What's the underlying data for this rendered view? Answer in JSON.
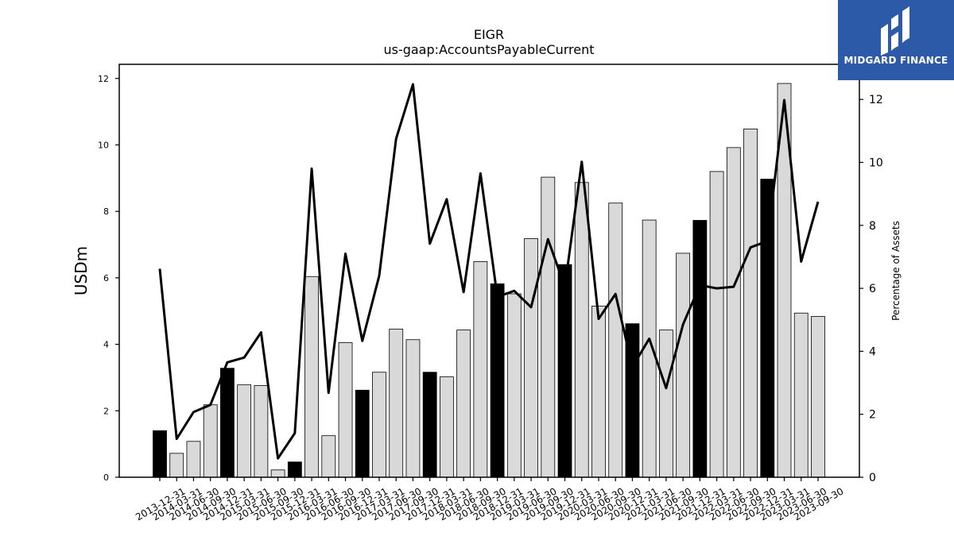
{
  "chart_data": {
    "type": "bar+line",
    "title": "EIGR",
    "subtitle": "us-gaap:AccountsPayableCurrent",
    "ylabel_left": "USDm",
    "ylabel_right": "Percentage of Assets",
    "ylim_left": [
      0,
      12.4
    ],
    "ylim_right": [
      0,
      13.1
    ],
    "yticks_left": [
      "0",
      "2",
      "4",
      "6",
      "8",
      "10",
      "12"
    ],
    "yticks_right": [
      "0",
      "2",
      "4",
      "6",
      "8",
      "10",
      "12"
    ],
    "categories": [
      "2013-12-31",
      "2014-03-31",
      "2014-06-30",
      "2014-09-30",
      "2014-12-31",
      "2015-03-31",
      "2015-06-30",
      "2015-09-30",
      "2015-12-31",
      "2016-03-31",
      "2016-06-30",
      "2016-09-30",
      "2016-12-31",
      "2017-03-31",
      "2017-06-30",
      "2017-09-30",
      "2017-12-31",
      "2018-03-31",
      "2018-06-30",
      "2018-09-30",
      "2018-12-31",
      "2019-03-31",
      "2019-06-30",
      "2019-09-30",
      "2019-12-31",
      "2020-03-31",
      "2020-06-30",
      "2020-09-30",
      "2020-12-31",
      "2021-03-31",
      "2021-06-30",
      "2021-09-30",
      "2021-12-31",
      "2022-03-31",
      "2022-06-30",
      "2022-09-30",
      "2022-12-31",
      "2023-03-31",
      "2023-06-30",
      "2023-09-30"
    ],
    "series": [
      {
        "kind": "bar",
        "values": [
          1.4,
          0.72,
          1.08,
          2.18,
          3.28,
          2.78,
          2.76,
          0.22,
          0.46,
          6.04,
          1.25,
          4.05,
          2.62,
          3.16,
          4.46,
          4.14,
          3.16,
          3.02,
          4.43,
          6.49,
          5.82,
          5.52,
          7.18,
          9.03,
          6.4,
          8.87,
          5.15,
          8.25,
          4.62,
          7.74,
          4.43,
          6.74,
          7.73,
          9.2,
          9.92,
          10.48,
          8.97,
          11.85,
          4.94,
          4.84
        ],
        "year_end": [
          true,
          false,
          false,
          false,
          true,
          false,
          false,
          false,
          true,
          false,
          false,
          false,
          true,
          false,
          false,
          false,
          true,
          false,
          false,
          false,
          true,
          false,
          false,
          false,
          true,
          false,
          false,
          false,
          true,
          false,
          false,
          false,
          true,
          false,
          false,
          false,
          true,
          false,
          false,
          false
        ]
      },
      {
        "kind": "line",
        "axis": "right",
        "values": [
          6.62,
          1.22,
          2.07,
          2.3,
          3.65,
          3.8,
          4.6,
          0.6,
          1.4,
          9.8,
          2.68,
          7.1,
          4.33,
          6.4,
          10.75,
          12.48,
          7.42,
          8.83,
          5.88,
          9.65,
          5.73,
          5.92,
          5.4,
          7.56,
          6.05,
          10.02,
          5.03,
          5.82,
          3.5,
          4.4,
          2.83,
          4.85,
          6.1,
          6.0,
          6.05,
          7.3,
          7.5,
          11.98,
          6.85,
          8.75
        ]
      }
    ],
    "colors": {
      "bar_regular": "#d9d9d9",
      "bar_year_end": "#000000",
      "bar_edge": "#000000",
      "line": "#000000"
    },
    "grid": false
  },
  "logo": {
    "text": "MIDGARD FINANCE",
    "background": "#2d5aa8"
  }
}
